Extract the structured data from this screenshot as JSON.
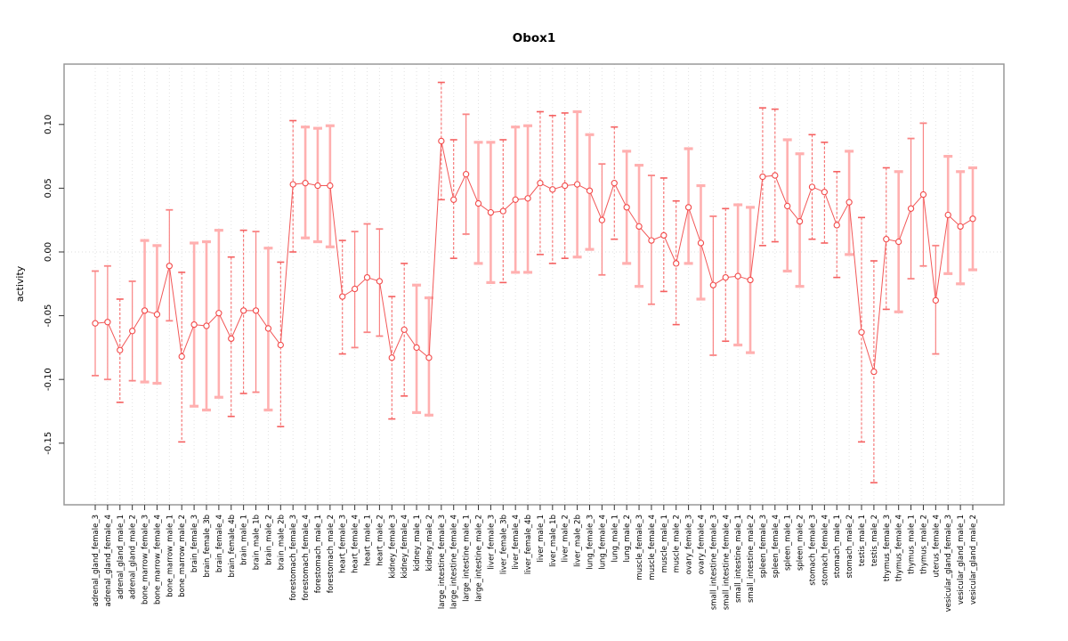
{
  "page": {
    "background": "#ffffff"
  },
  "chart_data": {
    "type": "scatter",
    "title": "Obox1",
    "xlabel": "",
    "ylabel": "activity",
    "ylim": [
      -0.198,
      0.148
    ],
    "yticks": [
      0.1,
      0.05,
      0.0,
      -0.05,
      -0.1,
      -0.15
    ],
    "ytick_labels": [
      "0.10",
      "0.05",
      "0.00",
      "-0.05",
      "-0.10",
      "-0.15"
    ],
    "grid": "vertical dotted gridline at every category; dotted horizontal reference line at y=0",
    "legend_position": "none",
    "marker": "open-circle connected by line, with asymmetric error bars",
    "colors": {
      "point": "#f24a4a",
      "line": "#f25858",
      "bar_dashed": "#f56060",
      "bar_thin": "#f98585",
      "bar_thick": "#ffb0b0",
      "grid": "#e2e2e2",
      "zero_line": "#dddddd",
      "frame": "#999999",
      "tick": "#333333"
    },
    "categories": [
      "adrenal_gland_female_3",
      "adrenal_gland_female_4",
      "adrenal_gland_male_1",
      "adrenal_gland_male_2",
      "bone_marrow_female_3",
      "bone_marrow_female_4",
      "bone_marrow_male_1",
      "bone_marrow_male_2",
      "brain_female_3",
      "brain_female_3b",
      "brain_female_4",
      "brain_female_4b",
      "brain_male_1",
      "brain_male_1b",
      "brain_male_2",
      "brain_male_2b",
      "forestomach_female_3",
      "forestomach_female_4",
      "forestomach_male_1",
      "forestomach_male_2",
      "heart_female_3",
      "heart_female_4",
      "heart_male_1",
      "heart_male_2",
      "kidney_female_3",
      "kidney_female_4",
      "kidney_male_1",
      "kidney_male_2",
      "large_intestine_female_3",
      "large_intestine_female_4",
      "large_intestine_male_1",
      "large_intestine_male_2",
      "liver_female_3",
      "liver_female_3b",
      "liver_female_4",
      "liver_female_4b",
      "liver_male_1",
      "liver_male_1b",
      "liver_male_2",
      "liver_male_2b",
      "lung_female_3",
      "lung_female_4",
      "lung_male_1",
      "lung_male_2",
      "muscle_female_3",
      "muscle_female_4",
      "muscle_male_1",
      "muscle_male_2",
      "ovary_female_3",
      "ovary_female_4",
      "small_intestine_female_3",
      "small_intestine_female_4",
      "small_intestine_male_1",
      "small_intestine_male_2",
      "spleen_female_3",
      "spleen_female_4",
      "spleen_male_1",
      "spleen_male_2",
      "stomach_female_3",
      "stomach_female_4",
      "stomach_male_1",
      "stomach_male_2",
      "testis_male_1",
      "testis_male_2",
      "thymus_female_3",
      "thymus_female_4",
      "thymus_male_1",
      "thymus_male_2",
      "uterus_female_4",
      "vesicular_gland_female_3",
      "vesicular_gland_male_1",
      "vesicular_gland_male_2"
    ],
    "series": [
      {
        "name": "activity",
        "values": [
          -0.056,
          -0.055,
          -0.077,
          -0.062,
          -0.046,
          -0.049,
          -0.011,
          -0.082,
          -0.057,
          -0.058,
          -0.048,
          -0.068,
          -0.046,
          -0.046,
          -0.06,
          -0.073,
          0.053,
          0.054,
          0.052,
          0.052,
          -0.035,
          -0.029,
          -0.02,
          -0.023,
          -0.083,
          -0.061,
          -0.075,
          -0.083,
          0.087,
          0.041,
          0.061,
          0.038,
          0.031,
          0.032,
          0.041,
          0.042,
          0.054,
          0.049,
          0.052,
          0.053,
          0.048,
          0.025,
          0.054,
          0.035,
          0.02,
          0.009,
          0.013,
          -0.009,
          0.035,
          0.007,
          -0.026,
          -0.02,
          -0.019,
          -0.022,
          0.059,
          0.06,
          0.036,
          0.024,
          0.051,
          0.047,
          0.021,
          0.039,
          -0.063,
          -0.094,
          0.01,
          0.008,
          0.034,
          0.045,
          -0.038,
          0.029,
          0.02,
          0.026
        ],
        "lower": [
          -0.097,
          -0.1,
          -0.118,
          -0.101,
          -0.102,
          -0.103,
          -0.054,
          -0.149,
          -0.121,
          -0.124,
          -0.114,
          -0.129,
          -0.111,
          -0.11,
          -0.124,
          -0.137,
          0.0,
          0.011,
          0.008,
          0.004,
          -0.08,
          -0.075,
          -0.063,
          -0.066,
          -0.131,
          -0.113,
          -0.126,
          -0.128,
          0.041,
          -0.005,
          0.014,
          -0.009,
          -0.024,
          -0.024,
          -0.016,
          -0.016,
          -0.002,
          -0.009,
          -0.005,
          -0.004,
          0.002,
          -0.018,
          0.01,
          -0.009,
          -0.027,
          -0.041,
          -0.031,
          -0.057,
          -0.009,
          -0.037,
          -0.081,
          -0.07,
          -0.073,
          -0.079,
          0.005,
          0.008,
          -0.015,
          -0.027,
          0.01,
          0.007,
          -0.02,
          -0.002,
          -0.149,
          -0.181,
          -0.045,
          -0.047,
          -0.021,
          -0.011,
          -0.08,
          -0.017,
          -0.025,
          -0.014
        ],
        "upper": [
          -0.015,
          -0.011,
          -0.037,
          -0.023,
          0.009,
          0.005,
          0.033,
          -0.016,
          0.007,
          0.008,
          0.017,
          -0.004,
          0.017,
          0.016,
          0.003,
          -0.008,
          0.103,
          0.098,
          0.097,
          0.099,
          0.009,
          0.016,
          0.022,
          0.018,
          -0.035,
          -0.009,
          -0.026,
          -0.036,
          0.133,
          0.088,
          0.108,
          0.086,
          0.086,
          0.088,
          0.098,
          0.099,
          0.11,
          0.107,
          0.109,
          0.11,
          0.092,
          0.069,
          0.098,
          0.079,
          0.068,
          0.06,
          0.058,
          0.04,
          0.081,
          0.052,
          0.028,
          0.034,
          0.037,
          0.035,
          0.113,
          0.112,
          0.088,
          0.077,
          0.092,
          0.086,
          0.063,
          0.079,
          0.027,
          -0.007,
          0.066,
          0.063,
          0.089,
          0.101,
          0.005,
          0.075,
          0.063,
          0.066
        ],
        "bar_style": [
          "t",
          "t",
          "d",
          "t",
          "k",
          "k",
          "t",
          "d",
          "k",
          "k",
          "k",
          "d",
          "d",
          "t",
          "k",
          "d",
          "d",
          "k",
          "k",
          "k",
          "d",
          "t",
          "t",
          "t",
          "d",
          "d",
          "k",
          "k",
          "d",
          "d",
          "t",
          "k",
          "k",
          "d",
          "k",
          "k",
          "d",
          "d",
          "d",
          "k",
          "k",
          "t",
          "d",
          "k",
          "k",
          "t",
          "d",
          "d",
          "k",
          "k",
          "t",
          "d",
          "k",
          "k",
          "d",
          "d",
          "k",
          "k",
          "d",
          "d",
          "d",
          "k",
          "d",
          "d",
          "d",
          "k",
          "t",
          "t",
          "t",
          "k",
          "k",
          "k"
        ]
      }
    ]
  }
}
